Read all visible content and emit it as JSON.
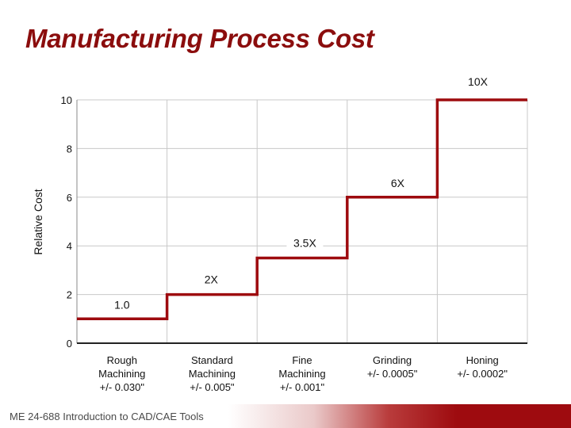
{
  "slide": {
    "title": "Manufacturing Process Cost",
    "footer": "ME 24-688 Introduction to CAD/CAE Tools"
  },
  "colors": {
    "title": "#8b0d0d",
    "step_line": "#9e0b0f",
    "footer_band": "#9e0b0f"
  },
  "chart_data": {
    "type": "line",
    "style": "step",
    "ylabel": "Relative Cost",
    "xlabel": "",
    "ylim": [
      0,
      10
    ],
    "yticks": [
      "0",
      "2",
      "4",
      "6",
      "8",
      "10"
    ],
    "grid": true,
    "categories": [
      [
        "Rough",
        "Machining",
        "+/- 0.030\""
      ],
      [
        "Standard",
        "Machining",
        "+/- 0.005\""
      ],
      [
        "Fine",
        "Machining",
        "+/- 0.001\""
      ],
      [
        "Grinding",
        "+/- 0.0005\""
      ],
      [
        "Honing",
        "+/- 0.0002\""
      ]
    ],
    "values": [
      1.0,
      2.0,
      3.5,
      6.0,
      10.0
    ],
    "data_labels": [
      "1.0",
      "2X",
      "3.5X",
      "6X",
      "10X"
    ]
  }
}
